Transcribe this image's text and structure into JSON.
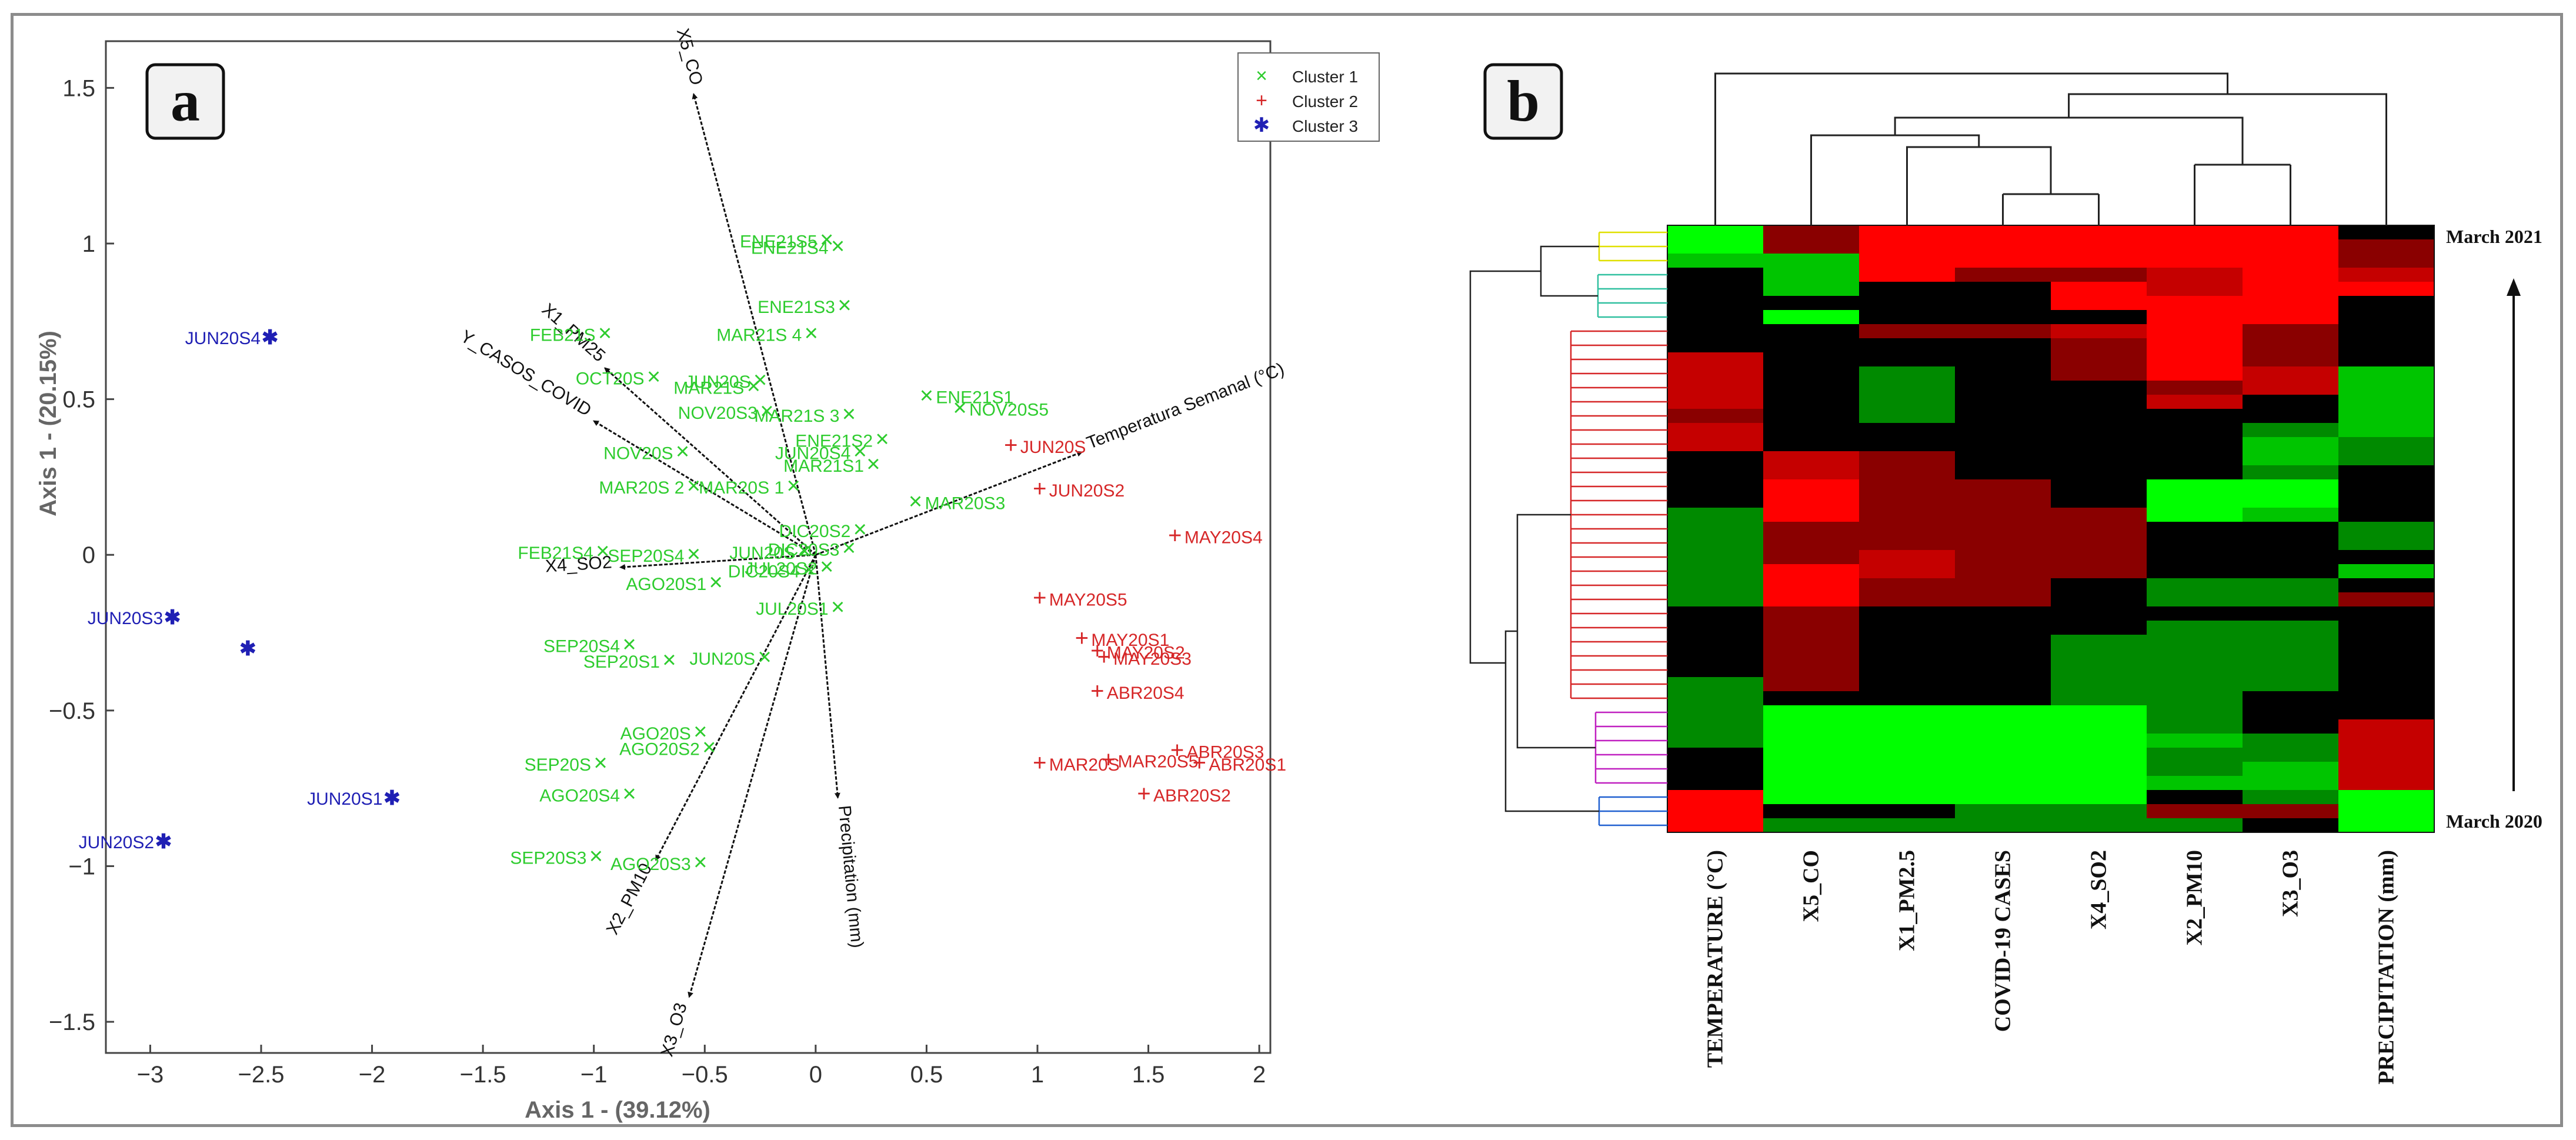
{
  "panel_a": {
    "letter": "a",
    "chart_data": {
      "type": "scatter",
      "subtype": "biplot",
      "xlabel": "Axis 1 - (39.12%)",
      "ylabel": "Axis 1 - (20.15%)",
      "xlim": [
        -3.2,
        2.05
      ],
      "ylim": [
        -1.6,
        1.65
      ],
      "xticks": [
        -3,
        -2.5,
        -2,
        -1.5,
        -1,
        -0.5,
        0,
        0.5,
        1,
        1.5,
        2
      ],
      "xtick_labels": [
        "−3",
        "−2.5",
        "−2",
        "−1.5",
        "−1",
        "−0.5",
        "0",
        "0.5",
        "1",
        "1.5",
        "2"
      ],
      "yticks": [
        -1.5,
        -1,
        -0.5,
        0,
        0.5,
        1,
        1.5
      ],
      "ytick_labels": [
        "−1.5",
        "−1",
        "−0.5",
        "0",
        "0.5",
        "1",
        "1.5"
      ],
      "legend": {
        "placement": "top-right",
        "entries": [
          {
            "name": "Cluster 1",
            "marker": "×",
            "color": "#2ecc2e"
          },
          {
            "name": "Cluster 2",
            "marker": "+",
            "color": "#d62728"
          },
          {
            "name": "Cluster 3",
            "marker": "✱",
            "color": "#1f1fb4"
          }
        ]
      },
      "vectors": [
        {
          "label": "X5_CO",
          "x": -0.55,
          "y": 1.48
        },
        {
          "label": "X1_PM25",
          "x": -0.95,
          "y": 0.6
        },
        {
          "label": "Y_CASOS_COVID",
          "x": -1.0,
          "y": 0.43
        },
        {
          "label": "Temperatura Semanal (°C)",
          "x": 1.2,
          "y": 0.33
        },
        {
          "label": "X4_SO2",
          "x": -0.88,
          "y": -0.04
        },
        {
          "label": "Precipitation (mm)",
          "x": 0.1,
          "y": -0.78
        },
        {
          "label": "X2_PM10",
          "x": -0.72,
          "y": -0.98
        },
        {
          "label": "X3_O3",
          "x": -0.57,
          "y": -1.42
        }
      ],
      "series": [
        {
          "name": "Cluster 1",
          "color": "#2ecc2e",
          "points": [
            {
              "label": "ENE21S5",
              "x": 0.05,
              "y": 1.01
            },
            {
              "label": "ENE21S4",
              "x": 0.1,
              "y": 0.99
            },
            {
              "label": "ENE21S3",
              "x": 0.13,
              "y": 0.8
            },
            {
              "label": "FEB21S",
              "x": -0.95,
              "y": 0.71
            },
            {
              "label": "MAR21S 4",
              "x": -0.02,
              "y": 0.71
            },
            {
              "label": "OCT20S",
              "x": -0.73,
              "y": 0.57
            },
            {
              "label": "JUN20S",
              "x": -0.25,
              "y": 0.56
            },
            {
              "label": "MAR21S",
              "x": -0.28,
              "y": 0.54
            },
            {
              "label": "NOV20S3",
              "x": -0.22,
              "y": 0.46
            },
            {
              "label": "ENE21S1",
              "x": 0.5,
              "y": 0.51
            },
            {
              "label": "MAR21S 3",
              "x": 0.15,
              "y": 0.45
            },
            {
              "label": "NOV20S5",
              "x": 0.65,
              "y": 0.47
            },
            {
              "label": "ENE21S2",
              "x": 0.3,
              "y": 0.37
            },
            {
              "label": "NOV20S",
              "x": -0.6,
              "y": 0.33
            },
            {
              "label": "JUN20S4",
              "x": 0.2,
              "y": 0.33
            },
            {
              "label": "MAR21S1",
              "x": 0.26,
              "y": 0.29
            },
            {
              "label": "MAR20S 2",
              "x": -0.55,
              "y": 0.22
            },
            {
              "label": "MAR20S 1",
              "x": -0.1,
              "y": 0.22
            },
            {
              "label": "MAR20S3",
              "x": 0.45,
              "y": 0.17
            },
            {
              "label": "DIC20S2",
              "x": 0.2,
              "y": 0.08
            },
            {
              "label": "FEB21S4",
              "x": -0.96,
              "y": 0.01
            },
            {
              "label": "SEP20S4",
              "x": -0.55,
              "y": 0.0
            },
            {
              "label": "JUN20S",
              "x": -0.05,
              "y": 0.01
            },
            {
              "label": "DIC20S3",
              "x": 0.15,
              "y": 0.02
            },
            {
              "label": "DIC20S4",
              "x": -0.03,
              "y": -0.05
            },
            {
              "label": "JUL20S2",
              "x": 0.05,
              "y": -0.04
            },
            {
              "label": "AGO20S1",
              "x": -0.45,
              "y": -0.09
            },
            {
              "label": "JUL20S1",
              "x": 0.1,
              "y": -0.17
            },
            {
              "label": "SEP20S4",
              "x": -0.84,
              "y": -0.29
            },
            {
              "label": "SEP20S1",
              "x": -0.66,
              "y": -0.34
            },
            {
              "label": "JUN20S",
              "x": -0.23,
              "y": -0.33
            },
            {
              "label": "AGO20S",
              "x": -0.52,
              "y": -0.57
            },
            {
              "label": "AGO20S2",
              "x": -0.48,
              "y": -0.62
            },
            {
              "label": "SEP20S",
              "x": -0.97,
              "y": -0.67
            },
            {
              "label": "AGO20S4",
              "x": -0.84,
              "y": -0.77
            },
            {
              "label": "SEP20S3",
              "x": -0.99,
              "y": -0.97
            },
            {
              "label": "AGO20S3",
              "x": -0.52,
              "y": -0.99
            }
          ]
        },
        {
          "name": "Cluster 2",
          "color": "#d62728",
          "points": [
            {
              "label": "JUN20S",
              "x": 0.88,
              "y": 0.35
            },
            {
              "label": "JUN20S2",
              "x": 1.01,
              "y": 0.21
            },
            {
              "label": "MAY20S4",
              "x": 1.62,
              "y": 0.06
            },
            {
              "label": "MAY20S5",
              "x": 1.01,
              "y": -0.14
            },
            {
              "label": "MAY20S1",
              "x": 1.2,
              "y": -0.27
            },
            {
              "label": "MAY20S2",
              "x": 1.27,
              "y": -0.31
            },
            {
              "label": "MAY20S3",
              "x": 1.3,
              "y": -0.33
            },
            {
              "label": "ABR20S4",
              "x": 1.27,
              "y": -0.44
            },
            {
              "label": "ABR20S3",
              "x": 1.63,
              "y": -0.63
            },
            {
              "label": "MAR20S",
              "x": 1.01,
              "y": -0.67
            },
            {
              "label": "MAR20S5",
              "x": 1.32,
              "y": -0.66
            },
            {
              "label": "ABR20S1",
              "x": 1.73,
              "y": -0.67
            },
            {
              "label": "ABR20S2",
              "x": 1.48,
              "y": -0.77
            }
          ]
        },
        {
          "name": "Cluster 3",
          "color": "#1f1fb4",
          "points": [
            {
              "label": "JUN20S4",
              "x": -2.46,
              "y": 0.7
            },
            {
              "label": "JUN20S3",
              "x": -2.9,
              "y": -0.2
            },
            {
              "label": "",
              "x": -2.56,
              "y": -0.3
            },
            {
              "label": "JUN20S1",
              "x": -1.91,
              "y": -0.78
            },
            {
              "label": "JUN20S2",
              "x": -2.94,
              "y": -0.92
            }
          ]
        }
      ]
    }
  },
  "panel_b": {
    "letter": "b",
    "chart_data": {
      "type": "heatmap",
      "columns": [
        "TEMPERATURE (°C)",
        "X5_CO",
        "X1_PM2.5",
        "COVID-19 CASES",
        "X4_SO2",
        "X2_PM10",
        "X3_O3",
        "PRECIPITATION (mm)"
      ],
      "row_label_top": "March 2021",
      "row_label_bottom": "March 2020",
      "color_scale": [
        "#00ff00",
        "#000000",
        "#ff0000"
      ],
      "rows": [
        [
          -3,
          1,
          3,
          3,
          3,
          3,
          3,
          0
        ],
        [
          -3,
          1,
          3,
          3,
          3,
          3,
          3,
          1
        ],
        [
          -2,
          -2,
          3,
          3,
          3,
          3,
          3,
          1
        ],
        [
          0,
          -2,
          3,
          1,
          1,
          2,
          3,
          2
        ],
        [
          0,
          -2,
          0,
          0,
          3,
          2,
          3,
          3
        ],
        [
          0,
          0,
          0,
          0,
          3,
          3,
          3,
          0
        ],
        [
          0,
          -3,
          0,
          0,
          0,
          3,
          3,
          0
        ],
        [
          0,
          0,
          1,
          1,
          2,
          3,
          1,
          0
        ],
        [
          0,
          0,
          0,
          0,
          1,
          3,
          1,
          0
        ],
        [
          2,
          0,
          0,
          0,
          1,
          3,
          1,
          0
        ],
        [
          2,
          0,
          -1,
          0,
          1,
          3,
          2,
          -2
        ],
        [
          2,
          0,
          -1,
          0,
          0,
          1,
          2,
          -2
        ],
        [
          2,
          0,
          -1,
          0,
          0,
          2,
          0,
          -2
        ],
        [
          1,
          0,
          -1,
          0,
          0,
          0,
          0,
          -2
        ],
        [
          2,
          0,
          0,
          0,
          0,
          0,
          -1,
          -2
        ],
        [
          2,
          0,
          0,
          0,
          0,
          0,
          -2,
          -1
        ],
        [
          0,
          2,
          1,
          0,
          0,
          0,
          -2,
          -1
        ],
        [
          0,
          2,
          1,
          0,
          0,
          0,
          -1,
          0
        ],
        [
          0,
          3,
          1,
          1,
          0,
          -3,
          -3,
          0
        ],
        [
          0,
          3,
          1,
          1,
          0,
          -3,
          -3,
          0
        ],
        [
          -1,
          3,
          1,
          1,
          1,
          -3,
          -2,
          0
        ],
        [
          -1,
          1,
          1,
          1,
          1,
          0,
          0,
          -1
        ],
        [
          -1,
          1,
          1,
          1,
          1,
          0,
          0,
          -1
        ],
        [
          -1,
          1,
          2,
          1,
          1,
          0,
          0,
          0
        ],
        [
          -1,
          3,
          2,
          1,
          1,
          0,
          0,
          -2
        ],
        [
          -1,
          3,
          1,
          1,
          0,
          -1,
          -1,
          0
        ],
        [
          -1,
          3,
          1,
          1,
          0,
          -1,
          -1,
          1
        ],
        [
          0,
          1,
          0,
          0,
          0,
          0,
          0,
          0
        ],
        [
          0,
          1,
          0,
          0,
          0,
          -1,
          -1,
          0
        ],
        [
          0,
          1,
          0,
          0,
          -1,
          -1,
          -1,
          0
        ],
        [
          0,
          1,
          0,
          0,
          -1,
          -1,
          -1,
          0
        ],
        [
          0,
          1,
          0,
          0,
          -1,
          -1,
          -1,
          0
        ],
        [
          -1,
          1,
          0,
          0,
          -1,
          -1,
          -1,
          0
        ],
        [
          -1,
          0,
          0,
          0,
          -1,
          -1,
          0,
          0
        ],
        [
          -1,
          -3,
          -3,
          -3,
          -3,
          -1,
          0,
          0
        ],
        [
          -1,
          -3,
          -3,
          -3,
          -3,
          -1,
          0,
          2
        ],
        [
          -1,
          -3,
          -3,
          -3,
          -3,
          -2,
          -1,
          2
        ],
        [
          0,
          -3,
          -3,
          -3,
          -3,
          -1,
          -1,
          2
        ],
        [
          0,
          -3,
          -3,
          -3,
          -3,
          -1,
          -2,
          2
        ],
        [
          0,
          -3,
          -3,
          -3,
          -3,
          -2,
          -2,
          2
        ],
        [
          3,
          -3,
          -3,
          -3,
          -3,
          0,
          -1,
          -3
        ],
        [
          3,
          0,
          0,
          -1,
          -1,
          1,
          1,
          -3
        ],
        [
          3,
          -1,
          -1,
          -1,
          -1,
          -1,
          0,
          -3
        ]
      ]
    }
  }
}
